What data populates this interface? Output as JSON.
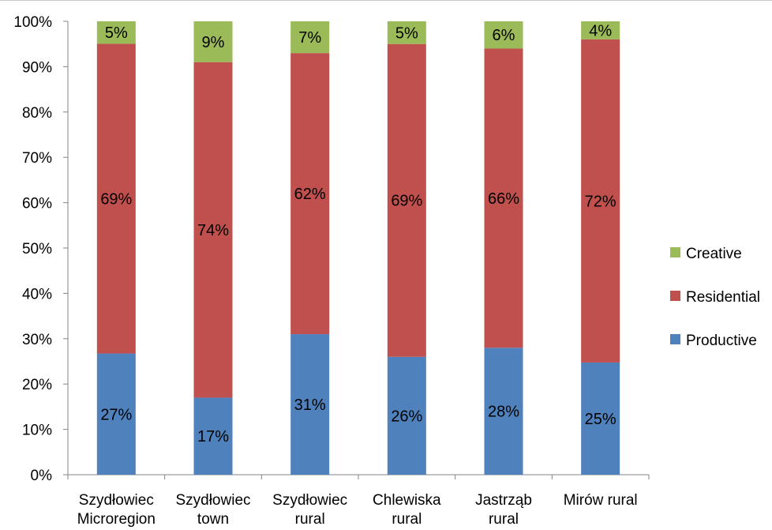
{
  "chart_data": {
    "type": "bar",
    "stacked": true,
    "percent_stacked": true,
    "categories": [
      [
        "Szydłowiec",
        "Microregion"
      ],
      [
        "Szydłowiec",
        "town"
      ],
      [
        "Szydłowiec",
        "rural"
      ],
      [
        "Chlewiska",
        "rural"
      ],
      [
        "Jastrząb",
        "rural"
      ],
      [
        "Mirów rural"
      ]
    ],
    "series": [
      {
        "name": "Productive",
        "color": "#4f81bd",
        "values": [
          27,
          17,
          31,
          26,
          28,
          25
        ],
        "labels": [
          "27%",
          "17%",
          "31%",
          "26%",
          "28%",
          "25%"
        ]
      },
      {
        "name": "Residential",
        "color": "#c0504d",
        "values": [
          69,
          74,
          62,
          69,
          66,
          72
        ],
        "labels": [
          "69%",
          "74%",
          "62%",
          "69%",
          "66%",
          "72%"
        ]
      },
      {
        "name": "Creative",
        "color": "#9bbb59",
        "values": [
          5,
          9,
          7,
          5,
          6,
          4
        ],
        "labels": [
          "5%",
          "9%",
          "7%",
          "5%",
          "6%",
          "4%"
        ]
      }
    ],
    "y_ticks": [
      "0%",
      "10%",
      "20%",
      "30%",
      "40%",
      "50%",
      "60%",
      "70%",
      "80%",
      "90%",
      "100%"
    ],
    "ylim": [
      0,
      100
    ],
    "grid": false,
    "legend_position": "right",
    "legend_order": [
      "Creative",
      "Residential",
      "Productive"
    ],
    "title": "",
    "xlabel": "",
    "ylabel": ""
  }
}
